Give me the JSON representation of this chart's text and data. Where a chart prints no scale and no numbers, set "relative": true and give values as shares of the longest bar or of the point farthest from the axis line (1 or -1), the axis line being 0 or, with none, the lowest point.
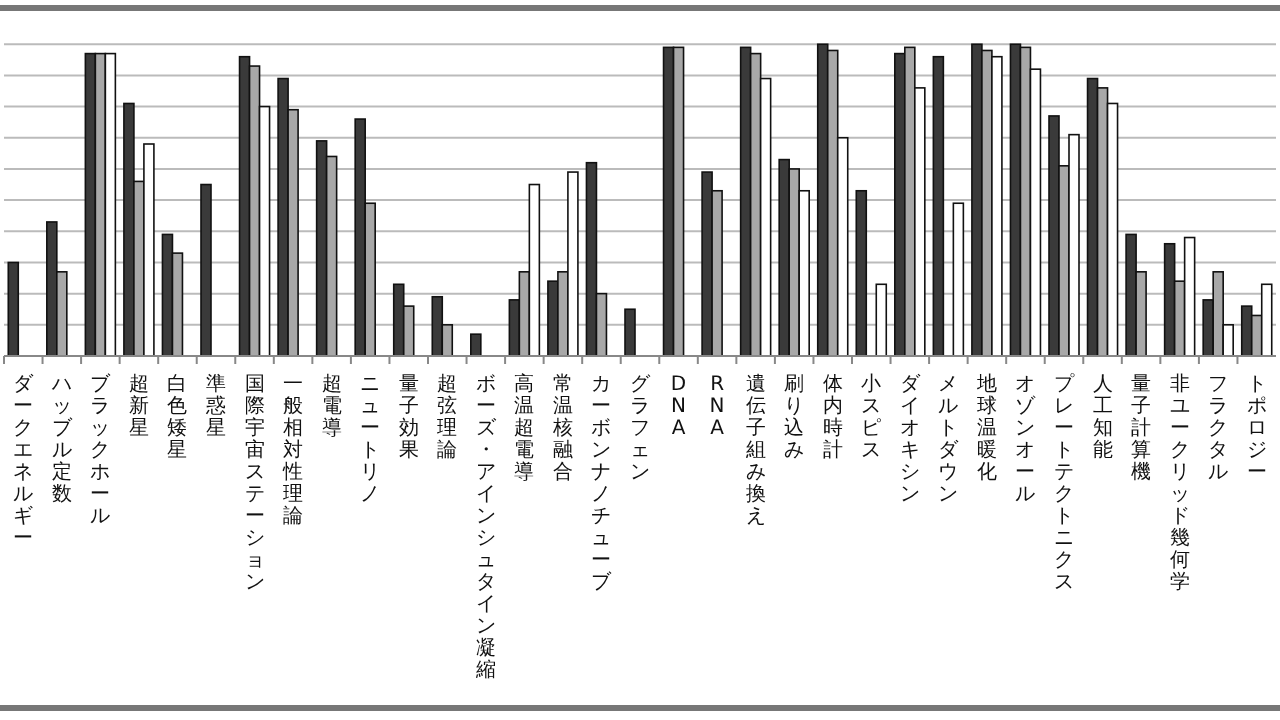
{
  "chart_data": {
    "type": "bar",
    "relative": true,
    "grid": "y",
    "categories": [
      "ダークエネルギー",
      "ハッブル定数",
      "ブラックホール",
      "超新星",
      "白色矮星",
      "準惑星",
      "国際宇宙ステーション",
      "一般相対性理論",
      "超電導",
      "ニュートリノ",
      "量子効果",
      "超弦理論",
      "ボーズ・アインシュタイン凝縮",
      "高温超電導",
      "常温核融合",
      "カーボンナノチューブ",
      "グラフェン",
      "DNA",
      "RNA",
      "遺伝子組み換え",
      "刷り込み",
      "体内時計",
      "小スピス",
      "ダイオキシン",
      "メルトダウン",
      "地球温暖化",
      "オゾンオール",
      "プレートテクトニクス",
      "人工知能",
      "量子計算機",
      "非ユークリッド幾何学",
      "フラクタル",
      "トポロジー"
    ],
    "series": [
      {
        "color": "#3a3a3a",
        "values": [
          0.3,
          0.43,
          0.97,
          0.81,
          0.39,
          0.55,
          0.96,
          0.89,
          0.69,
          0.76,
          0.23,
          0.19,
          0.07,
          0.18,
          0.24,
          0.62,
          0.15,
          0.99,
          0.59,
          0.99,
          0.63,
          1.0,
          0.53,
          0.97,
          0.96,
          1.0,
          1.0,
          0.77,
          0.89,
          0.39,
          0.36,
          0.18,
          0.16
        ]
      },
      {
        "color": "#a8a8a8",
        "values": [
          null,
          0.27,
          0.97,
          0.56,
          0.33,
          null,
          0.93,
          0.79,
          0.64,
          0.49,
          0.16,
          0.1,
          null,
          0.27,
          0.27,
          0.2,
          null,
          0.99,
          0.53,
          0.97,
          0.6,
          0.98,
          null,
          0.99,
          null,
          0.98,
          0.99,
          0.61,
          0.86,
          0.27,
          0.24,
          0.27,
          0.13
        ]
      },
      {
        "color": "#ffffff",
        "values": [
          null,
          null,
          0.97,
          0.68,
          null,
          null,
          0.8,
          null,
          null,
          null,
          null,
          null,
          null,
          0.55,
          0.59,
          null,
          null,
          null,
          null,
          0.89,
          0.53,
          0.7,
          0.23,
          0.86,
          0.49,
          0.96,
          0.92,
          0.71,
          0.81,
          null,
          0.38,
          0.1,
          0.23
        ]
      }
    ]
  }
}
